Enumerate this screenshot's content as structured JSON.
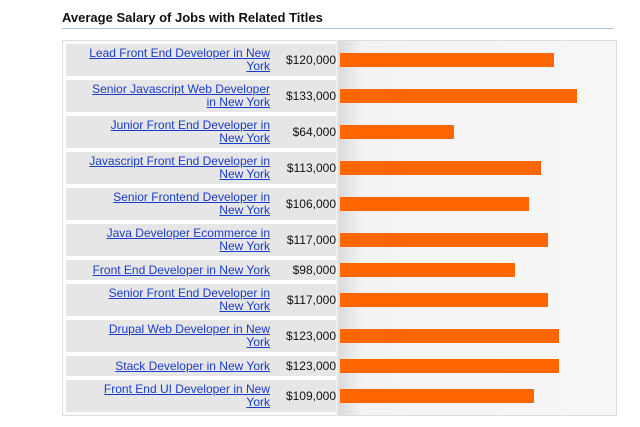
{
  "chart_data": {
    "type": "bar",
    "orientation": "horizontal",
    "title": "Average Salary of Jobs with Related Titles",
    "categories": [
      "Lead Front End Developer in New York",
      "Senior Javascript Web Developer in New York",
      "Junior Front End Developer in New York",
      "Javascript Front End Developer in New York",
      "Senior Frontend Developer in New York",
      "Java Developer Ecommerce in New York",
      "Front End Developer in New York",
      "Senior Front End Developer in New York",
      "Drupal Web Developer in New York",
      "Stack Developer in New York",
      "Front End UI Developer in New York"
    ],
    "values": [
      120000,
      133000,
      64000,
      113000,
      106000,
      117000,
      98000,
      117000,
      123000,
      123000,
      109000
    ],
    "value_labels": [
      "$120,000",
      "$133,000",
      "$64,000",
      "$113,000",
      "$106,000",
      "$117,000",
      "$98,000",
      "$117,000",
      "$123,000",
      "$123,000",
      "$109,000"
    ],
    "color": "#ff6600"
  }
}
